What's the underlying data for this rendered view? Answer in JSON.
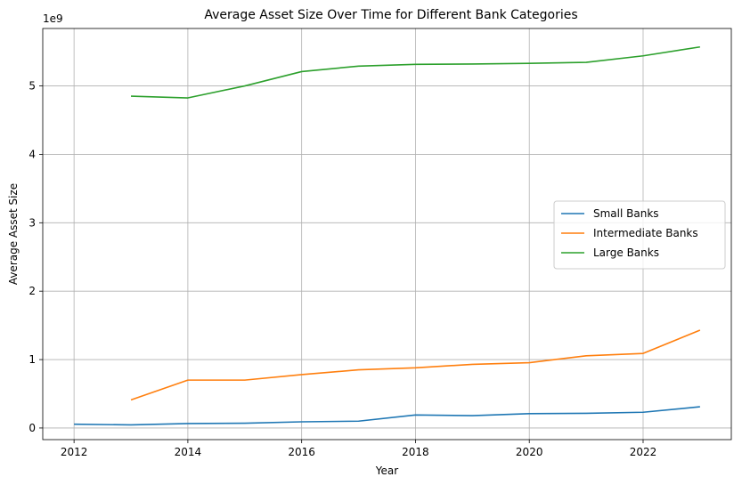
{
  "chart_data": {
    "type": "line",
    "title": "Average Asset Size Over Time for Different Bank Categories",
    "xlabel": "Year",
    "ylabel": "Average Asset Size",
    "y_multiplier_label": "1e9",
    "xlim": [
      2011.45,
      2023.55
    ],
    "ylim": [
      -0.17,
      5.84
    ],
    "x_ticks": [
      2012,
      2014,
      2016,
      2018,
      2020,
      2022
    ],
    "y_ticks": [
      0,
      1,
      2,
      3,
      4,
      5
    ],
    "grid": true,
    "legend_position": "center-right",
    "series": [
      {
        "name": "Small Banks",
        "color": "#1f77b4",
        "x": [
          2012,
          2013,
          2014,
          2015,
          2016,
          2017,
          2018,
          2019,
          2020,
          2021,
          2022,
          2023
        ],
        "values": [
          0.055,
          0.045,
          0.065,
          0.07,
          0.09,
          0.1,
          0.19,
          0.18,
          0.21,
          0.215,
          0.23,
          0.31
        ]
      },
      {
        "name": "Intermediate Banks",
        "color": "#ff7f0e",
        "x": [
          2013,
          2014,
          2015,
          2016,
          2017,
          2018,
          2019,
          2020,
          2021,
          2022,
          2023
        ],
        "values": [
          0.41,
          0.7,
          0.7,
          0.78,
          0.85,
          0.88,
          0.93,
          0.955,
          1.055,
          1.09,
          1.43
        ]
      },
      {
        "name": "Large Banks",
        "color": "#2ca02c",
        "x": [
          2013,
          2014,
          2015,
          2016,
          2017,
          2018,
          2019,
          2020,
          2021,
          2022,
          2023
        ],
        "values": [
          4.85,
          4.825,
          5.0,
          5.21,
          5.29,
          5.315,
          5.32,
          5.33,
          5.345,
          5.44,
          5.57
        ]
      }
    ]
  }
}
